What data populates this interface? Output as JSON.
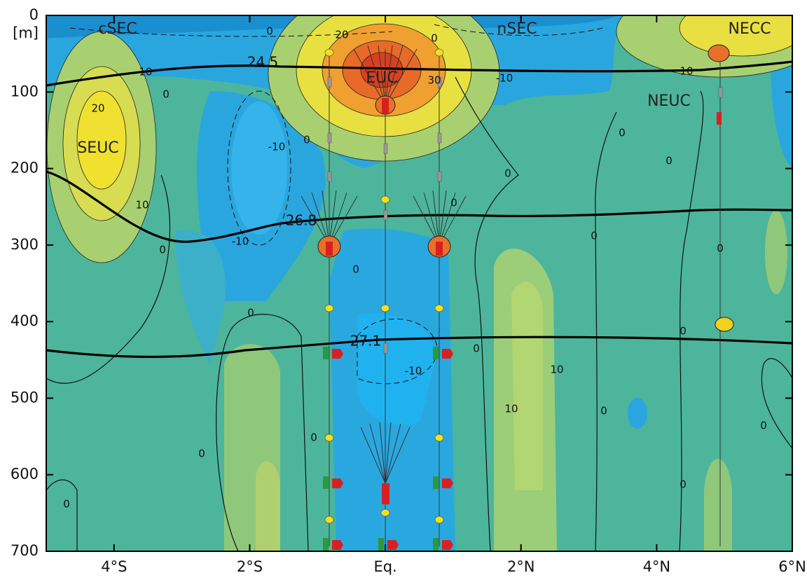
{
  "chart_data": {
    "type": "contour",
    "xlim": [
      -5,
      6
    ],
    "xticks": [
      {
        "value": -4,
        "label": "4°S"
      },
      {
        "value": -2,
        "label": "2°S"
      },
      {
        "value": 0,
        "label": "Eq."
      },
      {
        "value": 2,
        "label": "2°N"
      },
      {
        "value": 4,
        "label": "4°N"
      },
      {
        "value": 6,
        "label": "6°N"
      }
    ],
    "ylim": [
      0,
      700
    ],
    "y_inverted": true,
    "yticks": [
      0,
      100,
      200,
      300,
      400,
      500,
      600,
      700
    ],
    "y_unit": "[m]",
    "current_labels": [
      "cSEC",
      "nSEC",
      "NECC",
      "EUC",
      "SEUC",
      "NEUC"
    ],
    "isopycnal_labels": [
      24.5,
      26.8,
      27.1
    ],
    "contour_labels": [
      0,
      20,
      0,
      -10,
      -10,
      10,
      30,
      0,
      20,
      -10,
      0,
      0,
      0,
      0,
      10,
      0,
      0,
      -10,
      0,
      0,
      0,
      0,
      0,
      0,
      -10,
      10,
      10,
      0,
      0,
      0,
      0,
      0,
      0
    ]
  }
}
